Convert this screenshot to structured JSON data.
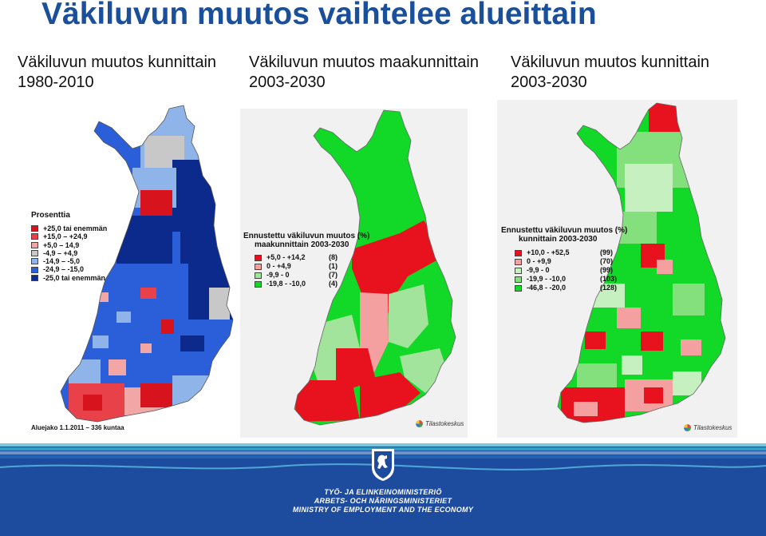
{
  "title": "Väkiluvun muutos vaihtelee alueittain",
  "panels": [
    {
      "subtitle_line1": "Väkiluvun muutos kunnittain",
      "subtitle_line2": "1980-2010"
    },
    {
      "subtitle_line1": "Väkiluvun muutos maakunnittain",
      "subtitle_line2": "2003-2030"
    },
    {
      "subtitle_line1": "Väkiluvun muutos kunnittain",
      "subtitle_line2": "2003-2030"
    }
  ],
  "legend1": {
    "title": "Prosenttia",
    "items": [
      {
        "label": "+25,0 tai enemmän",
        "color": "#d7141d"
      },
      {
        "label": "+15,0  –  +24,9",
        "color": "#e9414a"
      },
      {
        "label": "+5,0  –  14,9",
        "color": "#f2a6a6"
      },
      {
        "label": "-4,9  –  +4,9",
        "color": "#c8c8c8"
      },
      {
        "label": "-14,9  –  -5,0",
        "color": "#8fb4e9"
      },
      {
        "label": "-24,9  –  -15,0",
        "color": "#2b5fd9"
      },
      {
        "label": "-25,0 tai enemmän",
        "color": "#0b2a8c"
      }
    ]
  },
  "aluejako": "Aluejako 1.1.2011 – 336 kuntaa",
  "legend2": {
    "title_line1": "Ennustettu väkiluvun muutos (%)",
    "title_line2": "maakunnittain 2003-2030",
    "items": [
      {
        "range": "+5,0 - +14,2",
        "count": "(8)",
        "color": "#e8121e"
      },
      {
        "range": "0   -  +4,9",
        "count": "(1)",
        "color": "#f4a0a0"
      },
      {
        "range": "-9,9 -    0",
        "count": "(7)",
        "color": "#a2e49c"
      },
      {
        "range": "-19,8 - -10,0",
        "count": "(4)",
        "color": "#12d927"
      }
    ]
  },
  "legend3": {
    "title_line1": "Ennustettu väkiluvun muutos (%)",
    "title_line2": "kunnittain 2003-2030",
    "items": [
      {
        "range": "+10,0 - +52,5",
        "count": "(99)",
        "color": "#e8121e"
      },
      {
        "range": "0   -  +9,9",
        "count": "(70)",
        "color": "#f4a0a0"
      },
      {
        "range": "-9,9 -    0",
        "count": "(99)",
        "color": "#c6f0c0"
      },
      {
        "range": "-19,9 - -10,0",
        "count": "(103)",
        "color": "#84e07c"
      },
      {
        "range": "-46,8 - -20,0",
        "count": "(128)",
        "color": "#12d927"
      }
    ]
  },
  "source": "Tilastokeskus",
  "ministry": {
    "line1": "TYÖ- JA ELINKEINOMINISTERIÖ",
    "line2": "ARBETS- OCH NÄRINGSMINISTERIET",
    "line3": "MINISTRY OF EMPLOYMENT AND THE ECONOMY"
  }
}
